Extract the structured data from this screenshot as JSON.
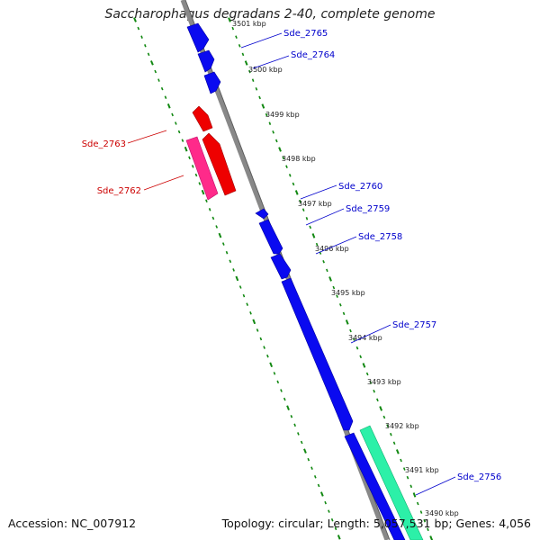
{
  "title": "Saccharophagus degradans 2-40, complete genome",
  "footer": {
    "accession": "Accession: NC_007912",
    "stats": "Topology: circular; Length: 5,057,531 bp; Genes: 4,056"
  },
  "colors": {
    "forward_strand": "#0a0af0",
    "reverse_strand": "#ee0000",
    "pink_gene": "#ff2a8a",
    "green_gene": "#2cf0a8",
    "backbone": "#888888",
    "tick": "#118811",
    "label_blue": "#0000cc",
    "label_red": "#cc0000"
  },
  "kbp_labels": [
    "3501 kbp",
    "3500 kbp",
    "3499 kbp",
    "3498 kbp",
    "3497 kbp",
    "3496 kbp",
    "3495 kbp",
    "3494 kbp",
    "3493 kbp",
    "3492 kbp",
    "3491 kbp",
    "3490 kbp"
  ],
  "genes": [
    {
      "label": "Sde_2765",
      "strand": "forward",
      "color": "blue"
    },
    {
      "label": "Sde_2764",
      "strand": "forward",
      "color": "blue"
    },
    {
      "label": "Sde_2763",
      "strand": "reverse",
      "color": "red"
    },
    {
      "label": "Sde_2762",
      "strand": "reverse",
      "color": "pink"
    },
    {
      "label": "Sde_2760",
      "strand": "forward",
      "color": "blue"
    },
    {
      "label": "Sde_2759",
      "strand": "forward",
      "color": "blue"
    },
    {
      "label": "Sde_2758",
      "strand": "forward",
      "color": "blue"
    },
    {
      "label": "Sde_2757",
      "strand": "forward",
      "color": "blue"
    },
    {
      "label": "Sde_2756",
      "strand": "forward",
      "color": "green"
    }
  ]
}
